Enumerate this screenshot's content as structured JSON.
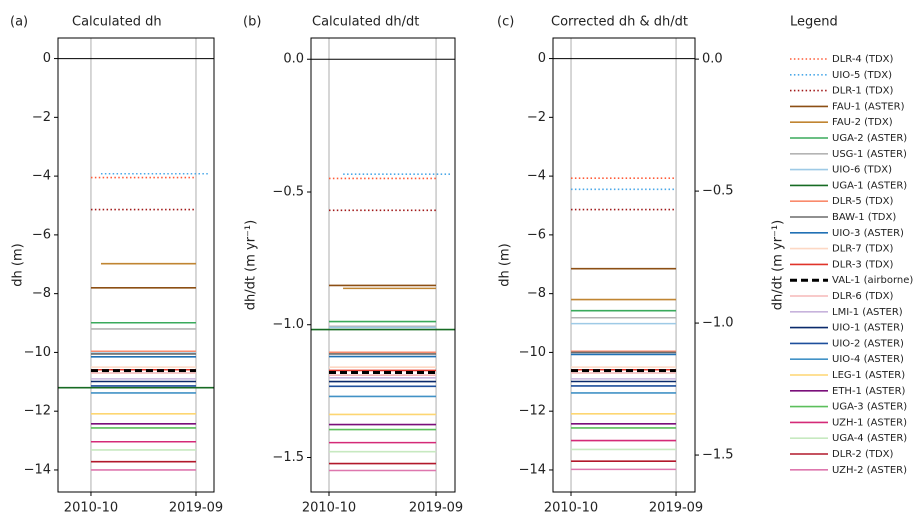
{
  "legend": {
    "title": "Legend",
    "entries": [
      {
        "name": "DLR-4 (TDX)",
        "color": "#ff5a36",
        "style": "dotted"
      },
      {
        "name": "UIO-5 (TDX)",
        "color": "#4aa8e8",
        "style": "dotted"
      },
      {
        "name": "DLR-1 (TDX)",
        "color": "#a01818",
        "style": "dotted"
      },
      {
        "name": "FAU-1 (ASTER)",
        "color": "#8c4f14",
        "style": "solid"
      },
      {
        "name": "FAU-2 (TDX)",
        "color": "#c08532",
        "style": "solid"
      },
      {
        "name": "UGA-2 (ASTER)",
        "color": "#3aaa5c",
        "style": "solid"
      },
      {
        "name": "USG-1 (ASTER)",
        "color": "#b4b4b4",
        "style": "solid"
      },
      {
        "name": "UIO-6 (TDX)",
        "color": "#9ecae6",
        "style": "solid"
      },
      {
        "name": "UGA-1 (ASTER)",
        "color": "#176b23",
        "style": "solid"
      },
      {
        "name": "DLR-5 (TDX)",
        "color": "#f98a6c",
        "style": "solid"
      },
      {
        "name": "BAW-1 (TDX)",
        "color": "#6b6b6b",
        "style": "solid"
      },
      {
        "name": "UIO-3 (ASTER)",
        "color": "#2171b5",
        "style": "solid"
      },
      {
        "name": "DLR-7 (TDX)",
        "color": "#fdd8c4",
        "style": "solid"
      },
      {
        "name": "DLR-3 (TDX)",
        "color": "#e0342a",
        "style": "solid"
      },
      {
        "name": "VAL-1 (airborne)",
        "color": "#000000",
        "style": "dashed"
      },
      {
        "name": "DLR-6 (TDX)",
        "color": "#f5b8b8",
        "style": "solid"
      },
      {
        "name": "LMI-1 (ASTER)",
        "color": "#c7b3dc",
        "style": "solid"
      },
      {
        "name": "UIO-1 (ASTER)",
        "color": "#0a2a6b",
        "style": "solid"
      },
      {
        "name": "UIO-2 (ASTER)",
        "color": "#1d4f9c",
        "style": "solid"
      },
      {
        "name": "UIO-4 (ASTER)",
        "color": "#4292c6",
        "style": "solid"
      },
      {
        "name": "LEG-1 (ASTER)",
        "color": "#fdd672",
        "style": "solid"
      },
      {
        "name": "ETH-1 (ASTER)",
        "color": "#7a0f7a",
        "style": "solid"
      },
      {
        "name": "UGA-3 (ASTER)",
        "color": "#5cbf5c",
        "style": "solid"
      },
      {
        "name": "UZH-1 (ASTER)",
        "color": "#d42a78",
        "style": "solid"
      },
      {
        "name": "UGA-4 (ASTER)",
        "color": "#c7e9c0",
        "style": "solid"
      },
      {
        "name": "DLR-2 (TDX)",
        "color": "#b2182b",
        "style": "solid"
      },
      {
        "name": "UZH-2 (ASTER)",
        "color": "#de77ae",
        "style": "solid"
      }
    ]
  },
  "chart_data": [
    {
      "type": "line",
      "panel": "(a)",
      "title": "Calculated dh",
      "ylabel": "dh (m)",
      "hline": 0,
      "xlim": [
        2007.95,
        2021.2
      ],
      "xticks": [
        {
          "value": 2010.75,
          "label": "2010-10"
        },
        {
          "value": 2019.67,
          "label": "2019-09"
        }
      ],
      "ylim": [
        -14.75,
        0.7
      ],
      "yticks": [
        0,
        {
          "value": -2,
          "label": "−2"
        },
        {
          "value": -4,
          "label": "−4"
        },
        {
          "value": -6,
          "label": "−6"
        },
        {
          "value": -8,
          "label": "−8"
        },
        {
          "value": -10,
          "label": "−10"
        },
        {
          "value": -12,
          "label": "−12"
        },
        {
          "value": -14,
          "label": "−14"
        }
      ],
      "series": [
        {
          "x": [
            2010.75,
            2019.67
          ],
          "values": [
            -4.05,
            -4.05
          ]
        },
        {
          "x": [
            2011.6,
            2020.7
          ],
          "values": [
            -3.92,
            -3.92
          ]
        },
        {
          "x": [
            2010.75,
            2019.67
          ],
          "values": [
            -5.14,
            -5.14
          ]
        },
        {
          "x": [
            2010.75,
            2019.67
          ],
          "values": [
            -7.8,
            -7.8
          ]
        },
        {
          "x": [
            2011.6,
            2019.67
          ],
          "values": [
            -6.98,
            -6.98
          ]
        },
        {
          "x": [
            2010.75,
            2019.67
          ],
          "values": [
            -8.99,
            -8.99
          ]
        },
        {
          "x": [
            2010.75,
            2019.67
          ],
          "values": [
            -9.2,
            -9.2
          ]
        },
        {
          "x": [
            2010.75,
            2019.67
          ],
          "values": [
            -10.02,
            -10.02
          ]
        },
        {
          "x": [
            2007.95,
            2021.2
          ],
          "values": [
            -11.2,
            -11.2
          ]
        },
        {
          "x": [
            2010.75,
            2019.67
          ],
          "values": [
            -9.96,
            -9.96
          ]
        },
        {
          "x": [
            2010.75,
            2019.67
          ],
          "values": [
            -10.05,
            -10.05
          ]
        },
        {
          "x": [
            2010.75,
            2019.67
          ],
          "values": [
            -10.15,
            -10.15
          ]
        },
        {
          "x": [
            2010.75,
            2019.67
          ],
          "values": [
            -10.5,
            -10.5
          ]
        },
        {
          "x": [
            2010.75,
            2019.67
          ],
          "values": [
            -10.59,
            -10.59
          ]
        },
        {
          "x": [
            2010.75,
            2019.67
          ],
          "values": [
            -10.62,
            -10.62
          ]
        },
        {
          "x": [
            2010.75,
            2019.67
          ],
          "values": [
            -10.7,
            -10.7
          ]
        },
        {
          "x": [
            2010.75,
            2019.67
          ],
          "values": [
            -10.9,
            -10.9
          ]
        },
        {
          "x": [
            2010.75,
            2019.67
          ],
          "values": [
            -10.99,
            -10.99
          ]
        },
        {
          "x": [
            2010.75,
            2019.67
          ],
          "values": [
            -11.14,
            -11.14
          ]
        },
        {
          "x": [
            2010.75,
            2019.67
          ],
          "values": [
            -11.38,
            -11.38
          ]
        },
        {
          "x": [
            2010.75,
            2019.67
          ],
          "values": [
            -12.09,
            -12.09
          ]
        },
        {
          "x": [
            2010.75,
            2019.67
          ],
          "values": [
            -12.43,
            -12.43
          ]
        },
        {
          "x": [
            2010.75,
            2019.67
          ],
          "values": [
            -12.57,
            -12.57
          ]
        },
        {
          "x": [
            2010.75,
            2019.67
          ],
          "values": [
            -13.04,
            -13.04
          ]
        },
        {
          "x": [
            2010.75,
            2019.67
          ],
          "values": [
            -13.32,
            -13.32
          ]
        },
        {
          "x": [
            2010.75,
            2019.67
          ],
          "values": [
            -13.72,
            -13.72
          ]
        },
        {
          "x": [
            2010.75,
            2019.67
          ],
          "values": [
            -14.0,
            -14.0
          ]
        }
      ]
    },
    {
      "type": "line",
      "panel": "(b)",
      "title": "Calculated dh/dt",
      "ylabel": "dh/dt (m yr⁻¹)",
      "hline": 0,
      "xlim": [
        2009.25,
        2021.25
      ],
      "xticks": [
        {
          "value": 2010.75,
          "label": "2010-10"
        },
        {
          "value": 2019.67,
          "label": "2019-09"
        }
      ],
      "ylim": [
        -1.63,
        0.08
      ],
      "yticks": [
        {
          "value": 0,
          "label": "0.0"
        },
        {
          "value": -0.5,
          "label": "−0.5"
        },
        {
          "value": -1,
          "label": "−1.0"
        },
        {
          "value": -1.5,
          "label": "−1.5"
        }
      ],
      "series": [
        {
          "x": [
            2010.75,
            2019.67
          ],
          "values": [
            -0.449,
            -0.449
          ]
        },
        {
          "x": [
            2011.93,
            2020.84
          ],
          "values": [
            -0.433,
            -0.433
          ]
        },
        {
          "x": [
            2010.75,
            2019.67
          ],
          "values": [
            -0.569,
            -0.569
          ]
        },
        {
          "x": [
            2010.75,
            2019.67
          ],
          "values": [
            -0.852,
            -0.852
          ]
        },
        {
          "x": [
            2011.92,
            2019.67
          ],
          "values": [
            -0.863,
            -0.863
          ]
        },
        {
          "x": [
            2010.75,
            2019.67
          ],
          "values": [
            -0.988,
            -0.988
          ]
        },
        {
          "x": [
            2010.75,
            2019.67
          ],
          "values": [
            -1.006,
            -1.006
          ]
        },
        {
          "x": [
            2010.75,
            2019.67
          ],
          "values": [
            -1.01,
            -1.01
          ]
        },
        {
          "x": [
            2009.25,
            2021.25
          ],
          "values": [
            -1.018,
            -1.018
          ]
        },
        {
          "x": [
            2010.75,
            2019.67
          ],
          "values": [
            -1.104,
            -1.104
          ]
        },
        {
          "x": [
            2010.75,
            2019.67
          ],
          "values": [
            -1.11,
            -1.11
          ]
        },
        {
          "x": [
            2010.75,
            2019.67
          ],
          "values": [
            -1.12,
            -1.12
          ]
        },
        {
          "x": [
            2010.75,
            2019.67
          ],
          "values": [
            -1.16,
            -1.16
          ]
        },
        {
          "x": [
            2010.75,
            2019.67
          ],
          "values": [
            -1.172,
            -1.172
          ]
        },
        {
          "x": [
            2010.75,
            2019.67
          ],
          "values": [
            -1.18,
            -1.18
          ]
        },
        {
          "x": [
            2010.75,
            2019.67
          ],
          "values": [
            -1.19,
            -1.19
          ]
        },
        {
          "x": [
            2010.75,
            2019.67
          ],
          "values": [
            -1.2,
            -1.2
          ]
        },
        {
          "x": [
            2010.75,
            2019.67
          ],
          "values": [
            -1.214,
            -1.214
          ]
        },
        {
          "x": [
            2010.75,
            2019.67
          ],
          "values": [
            -1.232,
            -1.232
          ]
        },
        {
          "x": [
            2010.75,
            2019.67
          ],
          "values": [
            -1.27,
            -1.27
          ]
        },
        {
          "x": [
            2010.75,
            2019.67
          ],
          "values": [
            -1.338,
            -1.338
          ]
        },
        {
          "x": [
            2010.75,
            2019.67
          ],
          "values": [
            -1.376,
            -1.376
          ]
        },
        {
          "x": [
            2010.75,
            2019.67
          ],
          "values": [
            -1.395,
            -1.395
          ]
        },
        {
          "x": [
            2010.75,
            2019.67
          ],
          "values": [
            -1.444,
            -1.444
          ]
        },
        {
          "x": [
            2010.75,
            2019.67
          ],
          "values": [
            -1.478,
            -1.478
          ]
        },
        {
          "x": [
            2010.75,
            2019.67
          ],
          "values": [
            -1.523,
            -1.523
          ]
        },
        {
          "x": [
            2010.75,
            2019.67
          ],
          "values": [
            -1.549,
            -1.549
          ]
        }
      ]
    },
    {
      "type": "line",
      "panel": "(c)",
      "title": "Corrected dh & dh/dt",
      "ylabel": "dh (m)",
      "y2label": "dh/dt (m yr⁻¹)",
      "hline": 0,
      "xlim": [
        2009.22,
        2021.28
      ],
      "xticks": [
        {
          "value": 2010.75,
          "label": "2010-10"
        },
        {
          "value": 2019.67,
          "label": "2019-09"
        }
      ],
      "ylim": [
        -14.75,
        0.7
      ],
      "yticks": [
        0,
        {
          "value": -2,
          "label": "−2"
        },
        {
          "value": -4,
          "label": "−4"
        },
        {
          "value": -6,
          "label": "−6"
        },
        {
          "value": -8,
          "label": "−8"
        },
        {
          "value": -10,
          "label": "−10"
        },
        {
          "value": -12,
          "label": "−12"
        },
        {
          "value": -14,
          "label": "−14"
        }
      ],
      "y2lim": [
        -1.64,
        0.08
      ],
      "y2ticks": [
        {
          "value": 0,
          "label": "0.0"
        },
        {
          "value": -0.5,
          "label": "−0.5"
        },
        {
          "value": -1,
          "label": "−1.0"
        },
        {
          "value": -1.5,
          "label": "−1.5"
        }
      ],
      "series": [
        {
          "x": [
            2010.75,
            2019.67
          ],
          "values": [
            -4.07,
            -4.07
          ]
        },
        {
          "x": [
            2010.75,
            2019.67
          ],
          "values": [
            -4.45,
            -4.45
          ]
        },
        {
          "x": [
            2010.75,
            2019.67
          ],
          "values": [
            -5.14,
            -5.14
          ]
        },
        {
          "x": [
            2010.75,
            2019.67
          ],
          "values": [
            -7.15,
            -7.15
          ]
        },
        {
          "x": [
            2010.75,
            2019.67
          ],
          "values": [
            -8.2,
            -8.2
          ]
        },
        {
          "x": [
            2010.75,
            2019.67
          ],
          "values": [
            -8.58,
            -8.58
          ]
        },
        {
          "x": [
            2010.75,
            2019.67
          ],
          "values": [
            -8.82,
            -8.82
          ]
        },
        {
          "x": [
            2010.75,
            2019.67
          ],
          "values": [
            -9.02,
            -9.02
          ]
        },
        {
          "x": [
            2010.75,
            2019.67
          ],
          "values": [
            null,
            null
          ]
        },
        {
          "x": [
            2010.75,
            2019.67
          ],
          "values": [
            -9.96,
            -9.96
          ]
        },
        {
          "x": [
            2010.75,
            2019.67
          ],
          "values": [
            -10.0,
            -10.0
          ]
        },
        {
          "x": [
            2010.75,
            2019.67
          ],
          "values": [
            -10.07,
            -10.07
          ]
        },
        {
          "x": [
            2010.75,
            2019.67
          ],
          "values": [
            -10.5,
            -10.5
          ]
        },
        {
          "x": [
            2010.75,
            2019.67
          ],
          "values": [
            -10.59,
            -10.59
          ]
        },
        {
          "x": [
            2010.75,
            2019.67
          ],
          "values": [
            -10.62,
            -10.62
          ]
        },
        {
          "x": [
            2010.75,
            2019.67
          ],
          "values": [
            -10.7,
            -10.7
          ]
        },
        {
          "x": [
            2010.75,
            2019.67
          ],
          "values": [
            -10.9,
            -10.9
          ]
        },
        {
          "x": [
            2010.75,
            2019.67
          ],
          "values": [
            -10.99,
            -10.99
          ]
        },
        {
          "x": [
            2010.75,
            2019.67
          ],
          "values": [
            -11.14,
            -11.14
          ]
        },
        {
          "x": [
            2010.75,
            2019.67
          ],
          "values": [
            -11.38,
            -11.38
          ]
        },
        {
          "x": [
            2010.75,
            2019.67
          ],
          "values": [
            -12.09,
            -12.09
          ]
        },
        {
          "x": [
            2010.75,
            2019.67
          ],
          "values": [
            -12.43,
            -12.43
          ]
        },
        {
          "x": [
            2010.75,
            2019.67
          ],
          "values": [
            -12.57,
            -12.57
          ]
        },
        {
          "x": [
            2010.75,
            2019.67
          ],
          "values": [
            -13.0,
            -13.0
          ]
        },
        {
          "x": [
            2010.75,
            2019.67
          ],
          "values": [
            -13.3,
            -13.3
          ]
        },
        {
          "x": [
            2010.75,
            2019.67
          ],
          "values": [
            -13.7,
            -13.7
          ]
        },
        {
          "x": [
            2010.75,
            2019.67
          ],
          "values": [
            -13.98,
            -13.98
          ]
        }
      ]
    }
  ]
}
